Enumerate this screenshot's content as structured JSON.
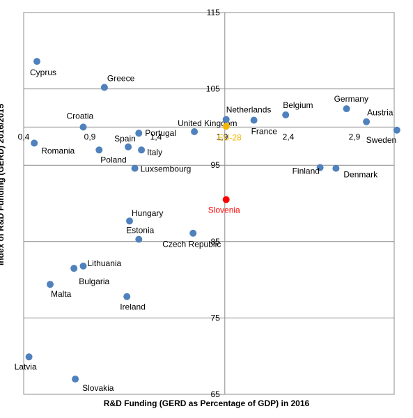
{
  "chart_data": {
    "type": "scatter",
    "title": "",
    "xlabel": "R&D Funding  (GERD as Percentage of GDP) in 2016",
    "ylabel": "Index of R&D  Funding (GERD) 2016/2015",
    "xlim": [
      0.4,
      3.2
    ],
    "ylim": [
      65,
      115
    ],
    "x_crosses_y_at": 100,
    "y_crosses_x_at": 1.92,
    "grid": true,
    "x_ticks": [
      "0,4",
      "0,9",
      "1,4",
      "1,9",
      "2,4",
      "2,9"
    ],
    "y_ticks": [
      "65",
      "75",
      "85",
      "95",
      "105",
      "115"
    ],
    "points": [
      {
        "label": "Cyprus",
        "x": 0.5,
        "y": 108.6,
        "color": "#4f81bd"
      },
      {
        "label": "Greece",
        "x": 1.01,
        "y": 105.2,
        "color": "#4f81bd"
      },
      {
        "label": "Croatia",
        "x": 0.85,
        "y": 100.0,
        "color": "#4f81bd"
      },
      {
        "label": "Romania",
        "x": 0.48,
        "y": 97.9,
        "color": "#4f81bd"
      },
      {
        "label": "Spain",
        "x": 1.19,
        "y": 97.4,
        "color": "#4f81bd"
      },
      {
        "label": "Portugal",
        "x": 1.27,
        "y": 99.2,
        "color": "#4f81bd"
      },
      {
        "label": "Poland",
        "x": 0.97,
        "y": 97.0,
        "color": "#4f81bd"
      },
      {
        "label": "Italy",
        "x": 1.29,
        "y": 97.0,
        "color": "#4f81bd"
      },
      {
        "label": "Luxsembourg",
        "x": 1.24,
        "y": 94.6,
        "color": "#4f81bd"
      },
      {
        "label": "United Kingdom",
        "x": 1.69,
        "y": 99.4,
        "color": "#4f81bd"
      },
      {
        "label": "EU-28",
        "x": 1.93,
        "y": 100.1,
        "color": "#f2b800"
      },
      {
        "label": "Netherlands",
        "x": 1.93,
        "y": 101.0,
        "color": "#4f81bd"
      },
      {
        "label": "France",
        "x": 2.14,
        "y": 100.9,
        "color": "#4f81bd"
      },
      {
        "label": "Belgium",
        "x": 2.38,
        "y": 101.6,
        "color": "#4f81bd"
      },
      {
        "label": "Germany",
        "x": 2.84,
        "y": 102.4,
        "color": "#4f81bd"
      },
      {
        "label": "Austria",
        "x": 2.99,
        "y": 100.7,
        "color": "#4f81bd"
      },
      {
        "label": "Sweden",
        "x": 3.22,
        "y": 99.6,
        "color": "#4f81bd"
      },
      {
        "label": "Finland",
        "x": 2.64,
        "y": 94.7,
        "color": "#4f81bd"
      },
      {
        "label": "Denmark",
        "x": 2.76,
        "y": 94.6,
        "color": "#4f81bd"
      },
      {
        "label": "Slovenia",
        "x": 1.93,
        "y": 90.5,
        "color": "#ff0000"
      },
      {
        "label": "Hungary",
        "x": 1.2,
        "y": 87.7,
        "color": "#4f81bd"
      },
      {
        "label": "Estonia",
        "x": 1.27,
        "y": 85.3,
        "color": "#4f81bd"
      },
      {
        "label": "Czech Republic",
        "x": 1.68,
        "y": 86.1,
        "color": "#4f81bd"
      },
      {
        "label": "Lithuania",
        "x": 0.85,
        "y": 81.8,
        "color": "#4f81bd"
      },
      {
        "label": "Bulgaria",
        "x": 0.78,
        "y": 81.5,
        "color": "#4f81bd"
      },
      {
        "label": "Malta",
        "x": 0.6,
        "y": 79.4,
        "color": "#4f81bd"
      },
      {
        "label": "Ireland",
        "x": 1.18,
        "y": 77.8,
        "color": "#4f81bd"
      },
      {
        "label": "Latvia",
        "x": 0.44,
        "y": 69.9,
        "color": "#4f81bd"
      },
      {
        "label": "Slovakia",
        "x": 0.79,
        "y": 67.0,
        "color": "#4f81bd"
      }
    ]
  }
}
